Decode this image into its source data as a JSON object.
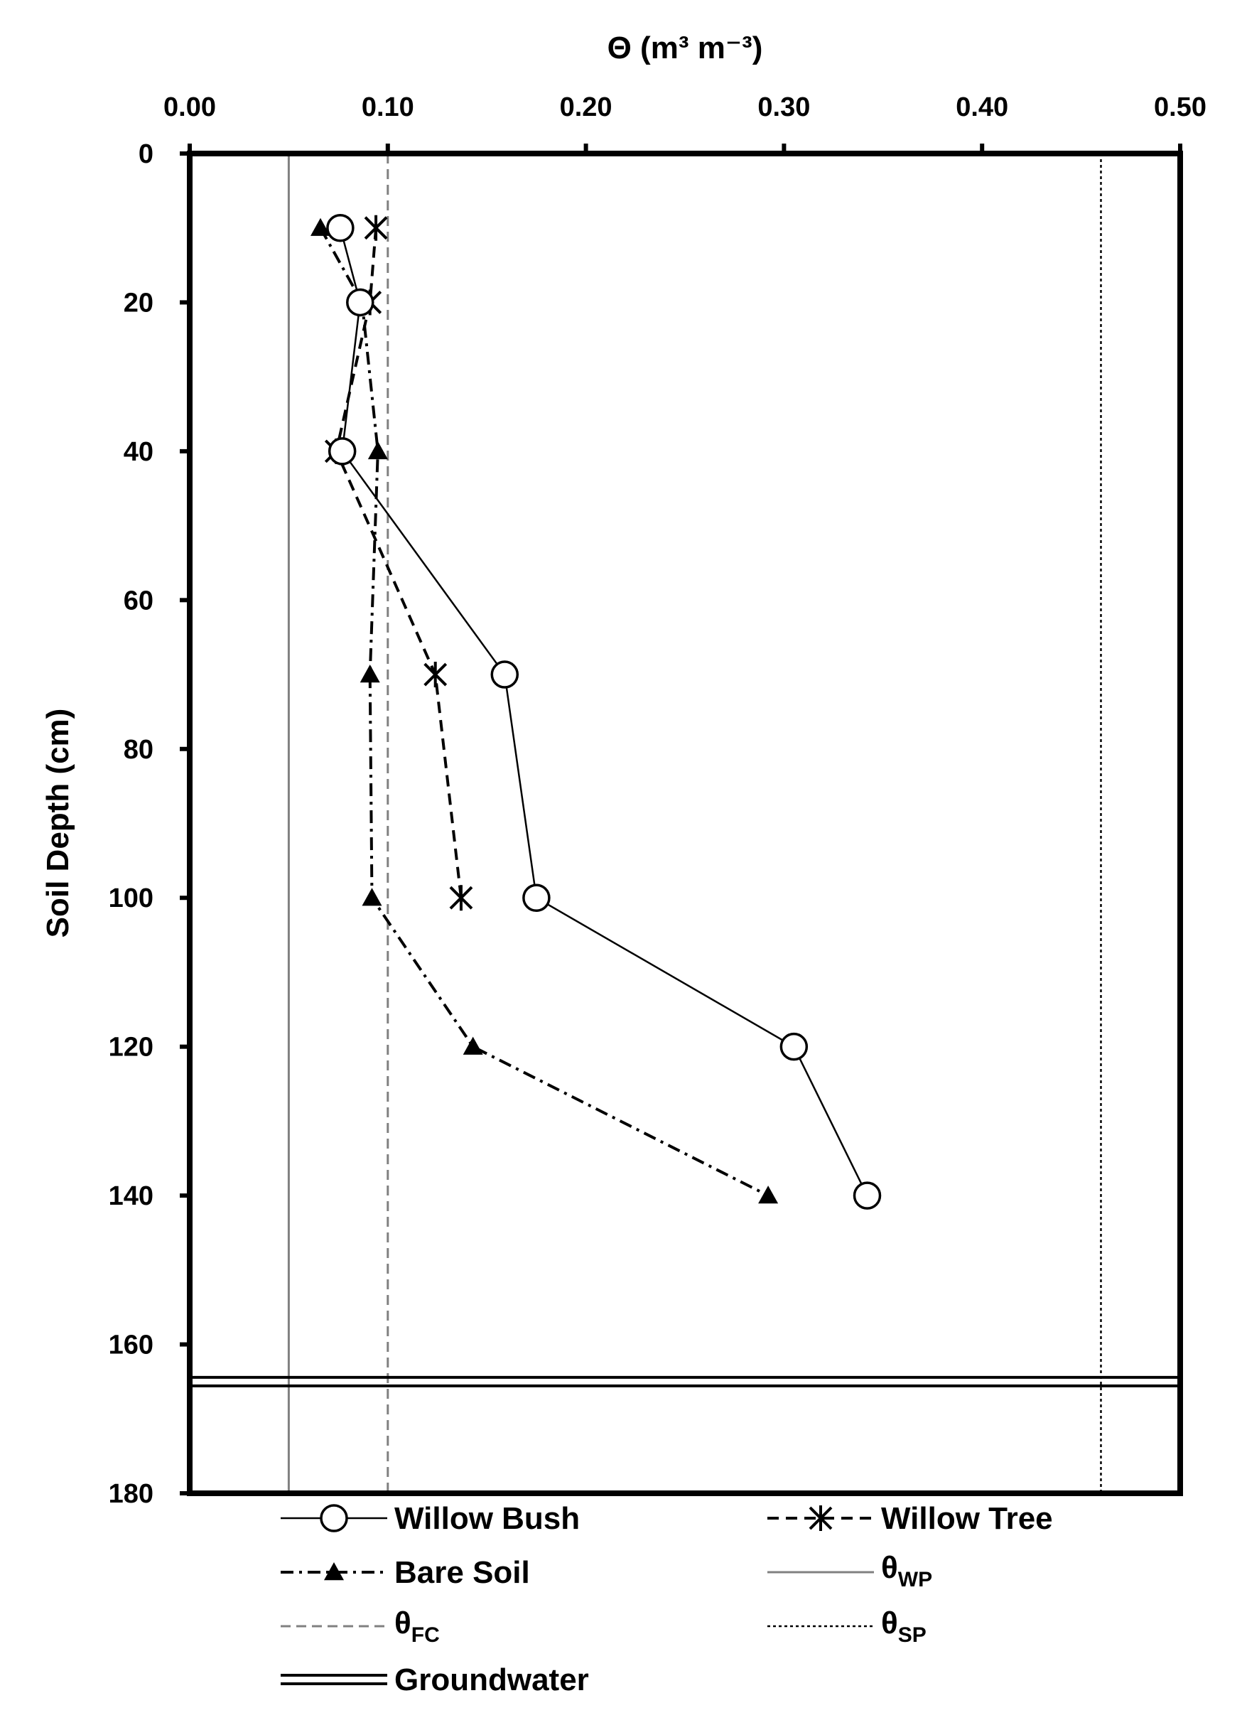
{
  "chart_data": {
    "type": "scatter",
    "orientation": "vertical-profile",
    "xlabel": "Θ (m³ m⁻³)",
    "ylabel": "Soil Depth (cm)",
    "xlim": [
      0,
      0.5
    ],
    "ylim": [
      0,
      180
    ],
    "x_axis_position": "top",
    "y_axis_inverted": true,
    "x_ticks": [
      "0.00",
      "0.10",
      "0.20",
      "0.30",
      "0.40",
      "0.50"
    ],
    "y_ticks": [
      "0",
      "20",
      "40",
      "60",
      "80",
      "100",
      "120",
      "140",
      "160",
      "180"
    ],
    "grid": false,
    "legend_placement": "bottom",
    "series": [
      {
        "name": "Willow Bush",
        "line": "solid",
        "marker": "open-circle",
        "points": [
          [
            0.076,
            10
          ],
          [
            0.086,
            20
          ],
          [
            0.077,
            40
          ],
          [
            0.159,
            70
          ],
          [
            0.175,
            100
          ],
          [
            0.305,
            120
          ],
          [
            0.342,
            140
          ]
        ]
      },
      {
        "name": "Willow Tree",
        "line": "dashed",
        "marker": "asterisk",
        "points": [
          [
            0.094,
            10
          ],
          [
            0.091,
            20
          ],
          [
            0.074,
            40
          ],
          [
            0.124,
            70
          ],
          [
            0.137,
            100
          ]
        ]
      },
      {
        "name": "Bare Soil",
        "line": "dash-dot",
        "marker": "filled-triangle",
        "points": [
          [
            0.066,
            10
          ],
          [
            0.087,
            20
          ],
          [
            0.095,
            40
          ],
          [
            0.091,
            70
          ],
          [
            0.092,
            100
          ],
          [
            0.143,
            120
          ],
          [
            0.292,
            140
          ]
        ]
      }
    ],
    "reference_lines": [
      {
        "name": "θ",
        "subscript": "WP",
        "orientation": "vertical",
        "value": 0.05,
        "style": "solid-gray"
      },
      {
        "name": "θ",
        "subscript": "FC",
        "orientation": "vertical",
        "value": 0.1,
        "style": "dashed-gray"
      },
      {
        "name": "θ",
        "subscript": "SP",
        "orientation": "vertical",
        "value": 0.46,
        "style": "dotted-black"
      },
      {
        "name": "Groundwater",
        "orientation": "horizontal",
        "value": 165,
        "style": "double-line"
      }
    ],
    "colors": {
      "series": "#000000",
      "wp": "#808080",
      "fc": "#808080",
      "sp": "#000000"
    }
  }
}
